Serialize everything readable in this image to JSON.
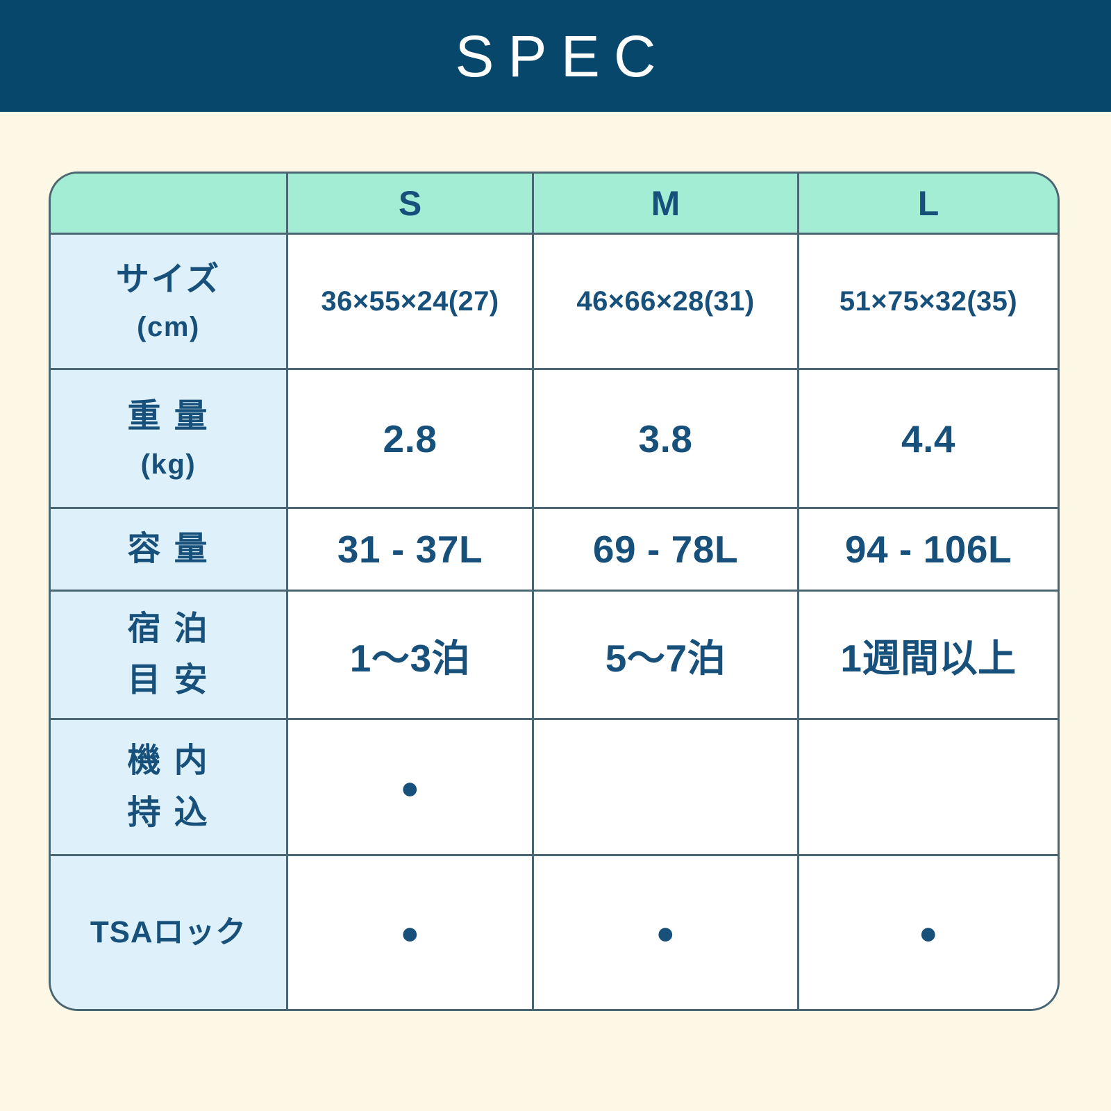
{
  "header": {
    "title": "SPEC"
  },
  "colors": {
    "navy": "#07476c",
    "text": "#17507a",
    "mint": "#a2edd3",
    "label_blue": "#def0fa",
    "cream": "#fdf8e5",
    "border": "#4a6672",
    "white": "#ffffff"
  },
  "table": {
    "column_headers": [
      "S",
      "M",
      "L"
    ],
    "rows": [
      {
        "label_lines": [
          "サイズ",
          "(cm)"
        ],
        "values": [
          "36×55×24(27)",
          "46×66×28(31)",
          "51×75×32(35)"
        ]
      },
      {
        "label_lines": [
          "重 量",
          "(kg)"
        ],
        "values": [
          "2.8",
          "3.8",
          "4.4"
        ]
      },
      {
        "label_lines": [
          "容 量"
        ],
        "values": [
          "31 - 37L",
          "69 - 78L",
          "94 - 106L"
        ]
      },
      {
        "label_lines": [
          "宿 泊",
          "目 安"
        ],
        "values": [
          "1〜3泊",
          "5〜7泊",
          "1週間以上"
        ]
      },
      {
        "label_lines": [
          "機 内",
          "持 込"
        ],
        "values": [
          "●",
          "",
          ""
        ]
      },
      {
        "label_lines": [
          "TSAロック"
        ],
        "values": [
          "●",
          "●",
          "●"
        ]
      }
    ]
  }
}
